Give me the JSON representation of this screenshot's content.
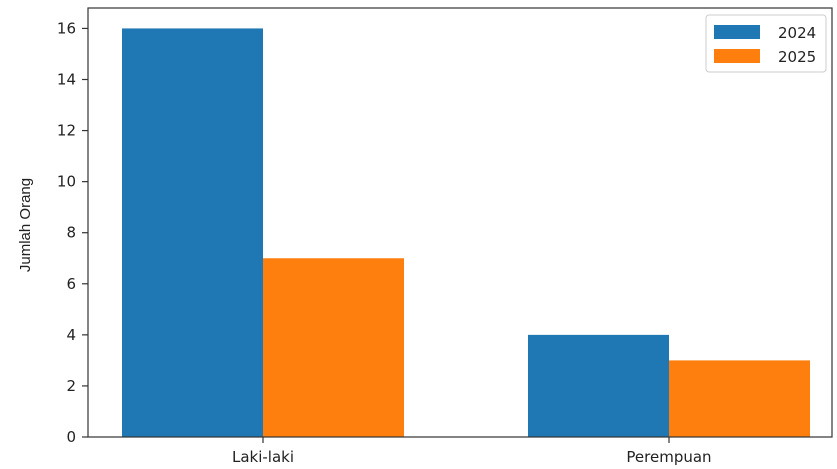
{
  "chart_data": {
    "type": "bar",
    "categories": [
      "Laki-laki",
      "Perempuan"
    ],
    "series": [
      {
        "name": "2024",
        "values": [
          16,
          4
        ],
        "color": "#1f77b4"
      },
      {
        "name": "2025",
        "values": [
          7,
          3
        ],
        "color": "#ff7f0e"
      }
    ],
    "xlabel": "",
    "ylabel": "Jumlah Orang",
    "ylim": [
      0,
      16.8
    ],
    "yticks": [
      0,
      2,
      4,
      6,
      8,
      10,
      12,
      14,
      16
    ],
    "grid": false,
    "legend_position": "top-right"
  }
}
